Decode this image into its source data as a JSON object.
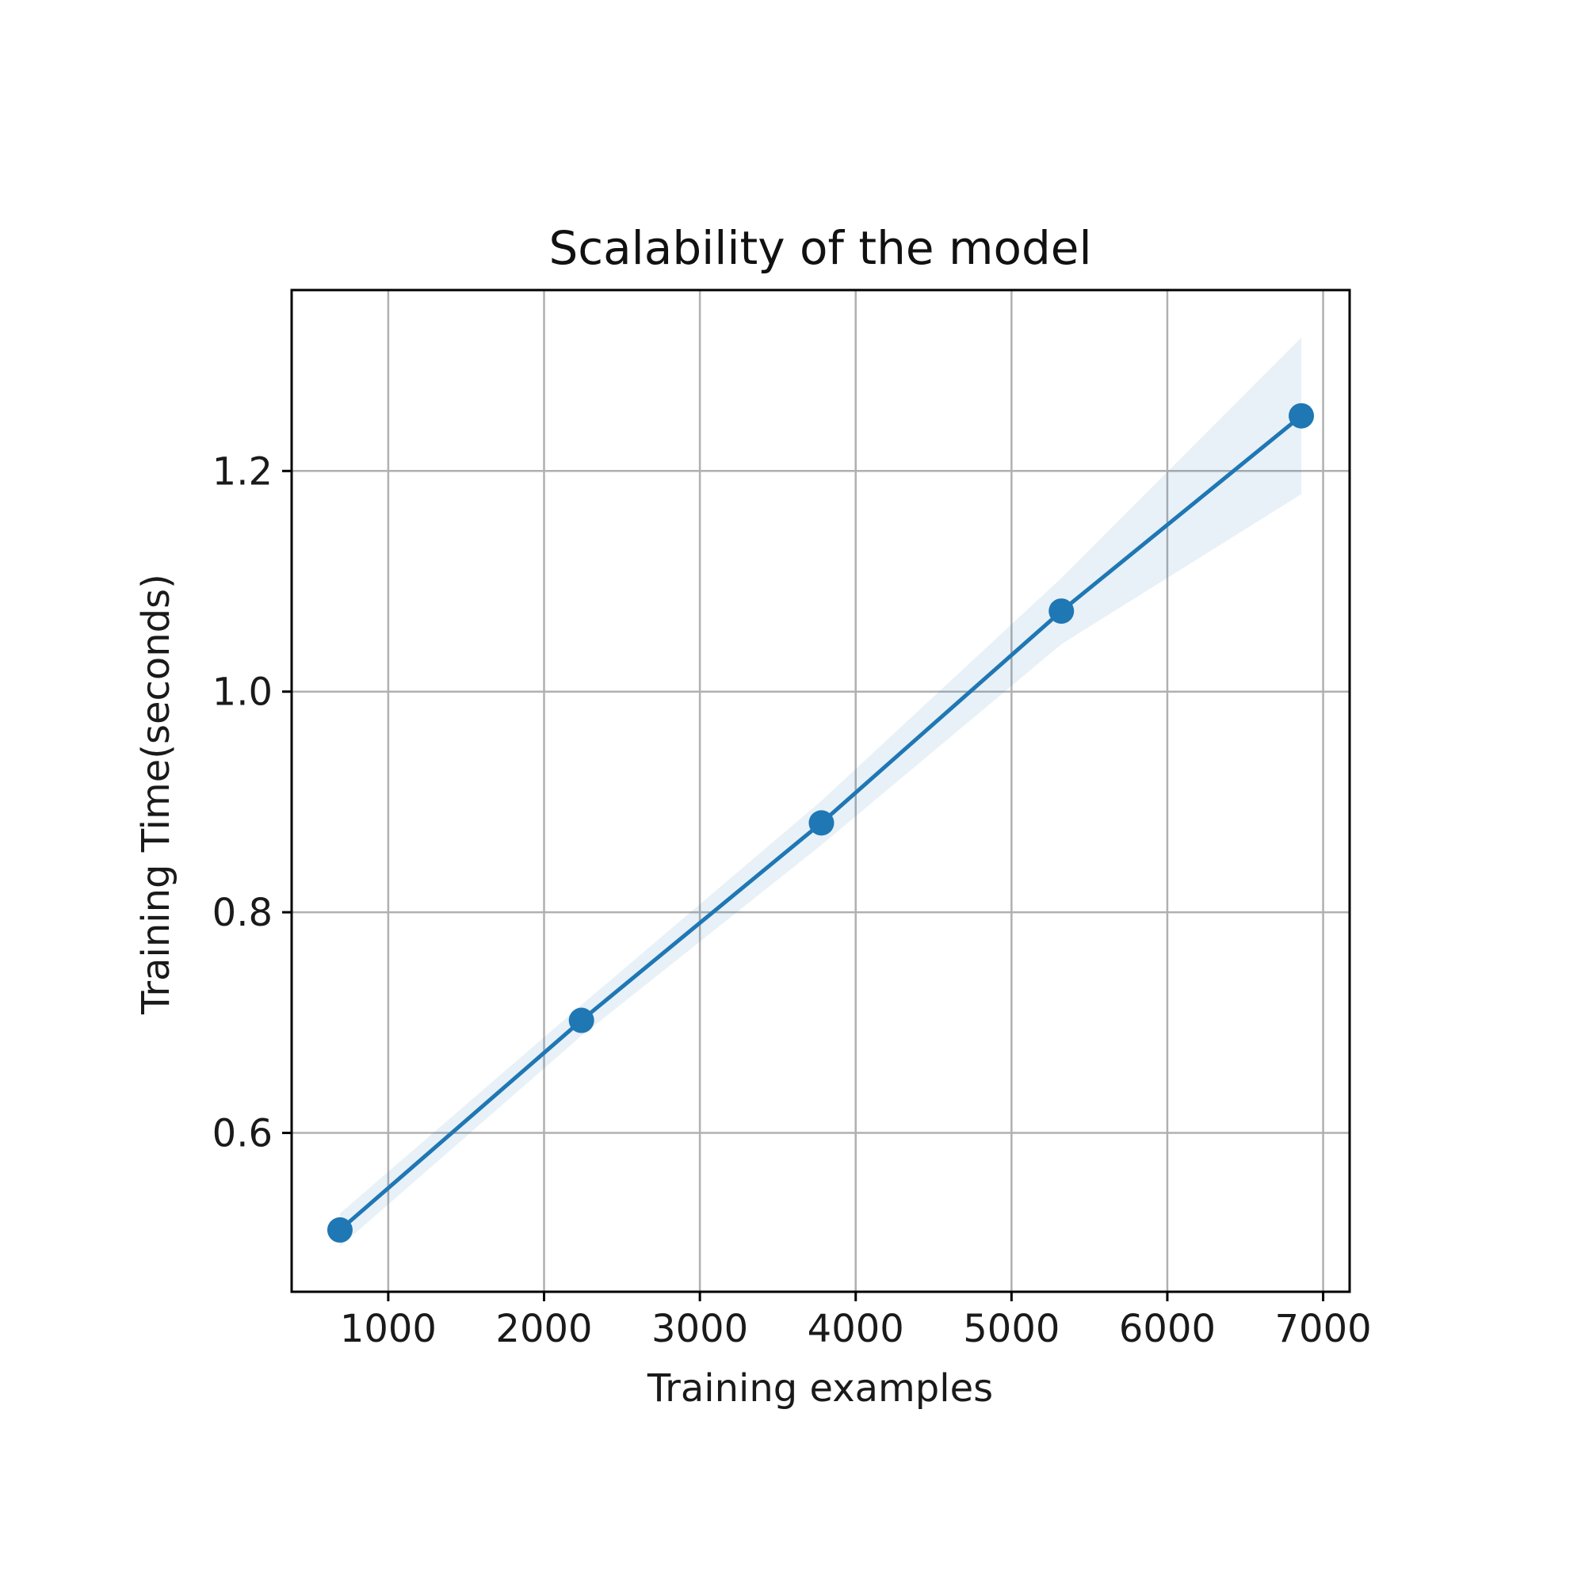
{
  "chart_data": {
    "type": "line",
    "title": "Scalability of the model",
    "xlabel": "Training examples",
    "ylabel": "Training Time(seconds)",
    "xlim": [
      380,
      7170
    ],
    "ylim": [
      0.456,
      1.364
    ],
    "xticks": [
      1000,
      2000,
      3000,
      4000,
      5000,
      6000,
      7000
    ],
    "xtick_labels": [
      "1000",
      "2000",
      "3000",
      "4000",
      "5000",
      "6000",
      "7000"
    ],
    "yticks": [
      0.6,
      0.8,
      1.0,
      1.2
    ],
    "ytick_labels": [
      "0.6",
      "0.8",
      "1.0",
      "1.2"
    ],
    "grid": true,
    "series": [
      {
        "x": [
          690,
          2240,
          3780,
          5320,
          6860
        ],
        "y": [
          0.512,
          0.702,
          0.881,
          1.073,
          1.25
        ],
        "lower": [
          0.497,
          0.688,
          0.861,
          1.043,
          1.179
        ],
        "upper": [
          0.527,
          0.716,
          0.901,
          1.103,
          1.321
        ],
        "color": "#1f77b4",
        "band_color": "#1f77b4",
        "marker": "circle"
      }
    ]
  }
}
